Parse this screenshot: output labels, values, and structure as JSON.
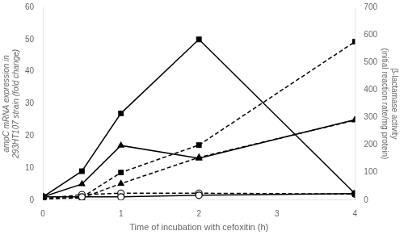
{
  "chart_data": {
    "type": "line",
    "x": [
      0,
      0.5,
      1,
      2,
      4
    ],
    "xlim": [
      0,
      4
    ],
    "xticks": [
      0,
      1,
      2,
      3,
      4
    ],
    "ylim": [
      0,
      60
    ],
    "yticks": [
      0,
      10,
      20,
      30,
      40,
      50,
      60
    ],
    "y2lim": [
      0,
      700
    ],
    "y2ticks": [
      0,
      100,
      200,
      300,
      400,
      500,
      600,
      700
    ],
    "xlabel": "Time of incubation with cefoxitin (h)",
    "ylabel": "ampC mRNA expression in\n293HT107 strain (fold change)",
    "y2label": "β-lactamase activity\n(initial reaction rate/mg protein)",
    "grid": false,
    "series": [
      {
        "values": [
          1,
          9,
          27,
          50,
          2
        ],
        "color": "#000000",
        "marker": "square",
        "line_style": "solid"
      },
      {
        "values": [
          1,
          5,
          17,
          13,
          25
        ],
        "color": "#000000",
        "marker": "triangle",
        "line_style": "solid"
      },
      {
        "values": [
          1,
          1,
          1,
          1.5,
          2
        ],
        "color": "#000000",
        "marker": "open_circle",
        "line_style": "solid"
      },
      {
        "values": [
          5,
          10,
          100,
          200,
          575
        ],
        "color": "#000000",
        "marker": "square",
        "line_style": "dashed",
        "axis": "y2"
      },
      {
        "values": [
          5,
          8,
          60,
          155,
          290
        ],
        "color": "#000000",
        "marker": "triangle",
        "line_style": "dashed",
        "axis": "y2"
      },
      {
        "values": [
          5,
          20,
          25,
          25,
          22
        ],
        "color": "#000000",
        "marker": "open_circle",
        "line_style": "dashed",
        "axis": "y2"
      }
    ]
  }
}
